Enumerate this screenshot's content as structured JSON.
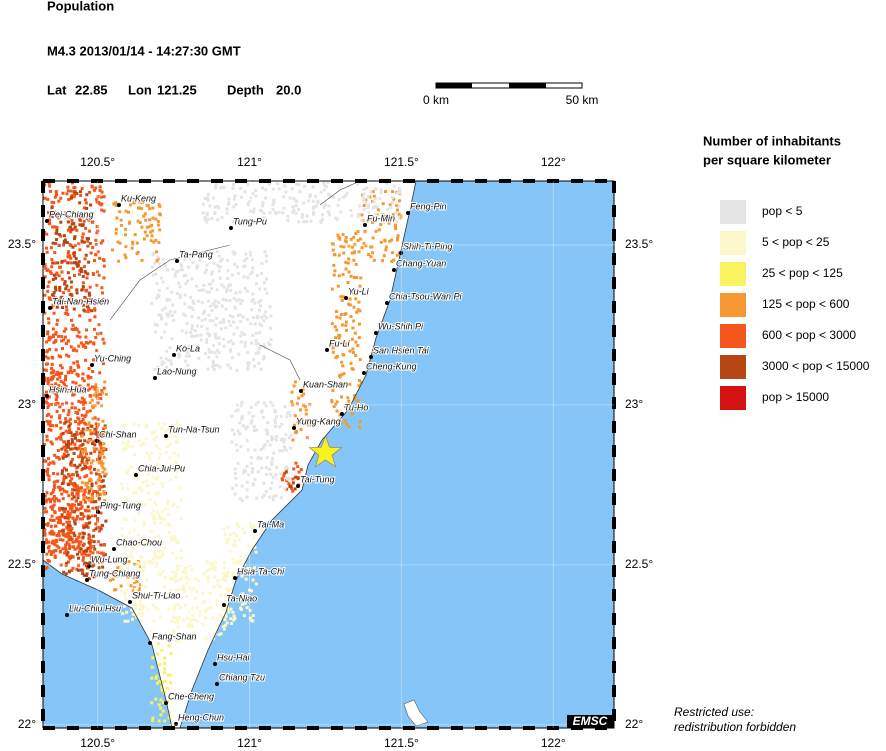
{
  "header": {
    "title": "Population",
    "event": "M4.3  2013/01/14 - 14:27:30 GMT",
    "lat_label": "Lat",
    "lat": 22.85,
    "lon_label": "Lon",
    "lon": 121.25,
    "depth_label": "Depth",
    "depth": "20.0"
  },
  "scale_bar": {
    "start": "0 km",
    "end": "50 km"
  },
  "map": {
    "lonlim": [
      120.32,
      122.2
    ],
    "latlim": [
      21.99,
      23.7
    ],
    "lon_ticks": [
      {
        "value": 120.5,
        "label": "120.5°"
      },
      {
        "value": 121,
        "label": "121°"
      },
      {
        "value": 121.5,
        "label": "121.5°"
      },
      {
        "value": 122,
        "label": "122°"
      }
    ],
    "lat_ticks": [
      {
        "value": 23.5,
        "label": "23.5°"
      },
      {
        "value": 23,
        "label": "23°"
      },
      {
        "value": 22.5,
        "label": "22.5°"
      },
      {
        "value": 22,
        "label": "22°"
      }
    ],
    "sea_color": "#86c5f7",
    "star_color": "#f8f21e",
    "cities": [
      "Ku-Keng",
      "Pei-Chiang",
      "Tung-Pu",
      "Ta-Pang",
      "Tai-Nan-Hsien",
      "Ko-La",
      "Yu-Ching",
      "Lao-Nung",
      "Hsin-Hua",
      "Tun-Na-Tsun",
      "Chi-Shan",
      "Chia-Jui-Pu",
      "Ping-Tung",
      "Chao-Chou",
      "Wu-Lung",
      "Tung-Chiang",
      "Shui-Ti-Liao",
      "Liu-Chiu Hsu",
      "Fang-Shan",
      "Hsu-Hai",
      "Chiang Tzu",
      "Che-Cheng",
      "Heng-Chun",
      "Feng-Pin",
      "Fu-Min",
      "Shih-Ti-Ping",
      "Chang-Yuan",
      "Yu-Li",
      "Chia-Tsou-Wan Pi",
      "Wu-Shih Pi",
      "Fu-Li",
      "San Hsien Tai",
      "Cheng-Kung",
      "Kuan-Shan",
      "Tu-Ho",
      "Yung-Kang",
      "Tai-Tung",
      "Tai-Ma",
      "Hsia-Ta-Chi",
      "Ta-Niao"
    ],
    "logo": "EMSC"
  },
  "legend": {
    "title_lines": [
      "Number of inhabitants",
      "per square kilometer"
    ],
    "items": [
      {
        "label": "pop < 5",
        "color": "#e4e4e4"
      },
      {
        "label": "5 < pop < 25",
        "color": "#fbf7c9"
      },
      {
        "label": "25 < pop < 125",
        "color": "#f8f35f"
      },
      {
        "label": "125 < pop < 600",
        "color": "#f69832"
      },
      {
        "label": "600 < pop < 3000",
        "color": "#f4561b"
      },
      {
        "label": "3000 < pop < 15000",
        "color": "#b64613"
      },
      {
        "label": "pop > 15000",
        "color": "#d51310"
      }
    ]
  },
  "footer": {
    "lines": [
      "Restricted use:",
      "redistribution forbidden"
    ]
  }
}
